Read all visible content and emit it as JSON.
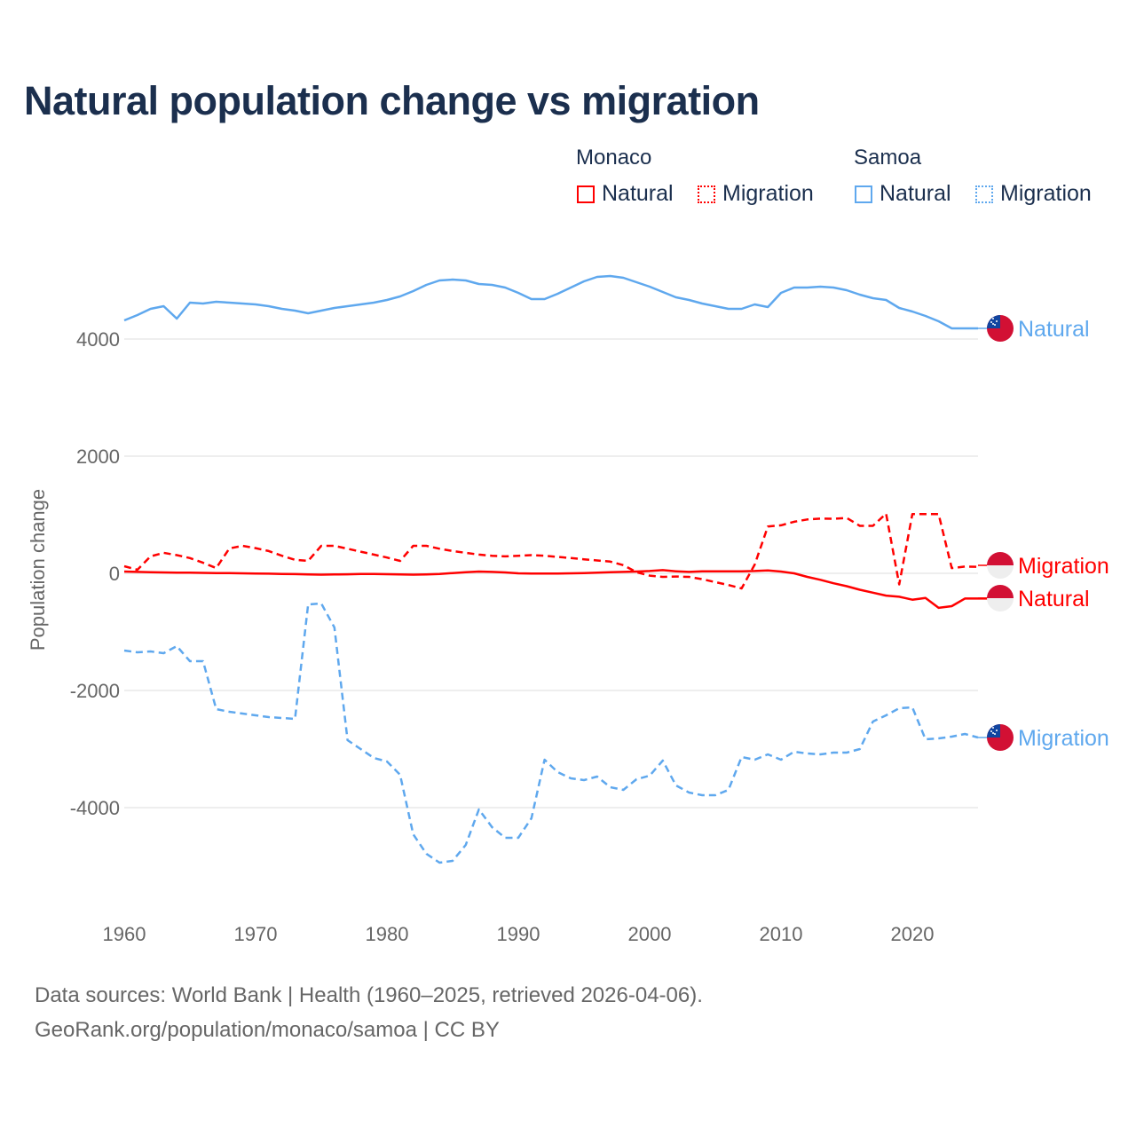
{
  "chart_data": {
    "type": "line",
    "title": "Natural population change vs migration",
    "xlabel": "",
    "ylabel": "Population change",
    "xlim": [
      1960,
      2025
    ],
    "ylim": [
      -5500,
      5500
    ],
    "x_ticks": [
      1960,
      1970,
      1980,
      1990,
      2000,
      2010,
      2020
    ],
    "y_ticks": [
      -4000,
      -2000,
      0,
      2000,
      4000
    ],
    "grid": true,
    "legend_placement": "top-right",
    "legend": {
      "groups": [
        {
          "name": "Monaco",
          "items": [
            "Natural",
            "Migration"
          ]
        },
        {
          "name": "Samoa",
          "items": [
            "Natural",
            "Migration"
          ]
        }
      ]
    },
    "x_start": 1960,
    "series": [
      {
        "name": "Natural",
        "country": "Monaco",
        "color": "#ff0000",
        "dash": false,
        "values": [
          30,
          25,
          20,
          15,
          12,
          10,
          8,
          5,
          3,
          0,
          -3,
          -6,
          -10,
          -14,
          -18,
          -22,
          -20,
          -16,
          -12,
          -12,
          -15,
          -20,
          -22,
          -18,
          -10,
          5,
          20,
          30,
          25,
          15,
          0,
          -5,
          -5,
          -3,
          0,
          5,
          10,
          18,
          25,
          30,
          40,
          55,
          35,
          25,
          35,
          35,
          35,
          35,
          40,
          50,
          30,
          0,
          -60,
          -110,
          -170,
          -220,
          -280,
          -330,
          -380,
          -400,
          -450,
          -420,
          -590,
          -560,
          -430,
          -430,
          -430
        ]
      },
      {
        "name": "Migration",
        "country": "Monaco",
        "color": "#ff0000",
        "dash": true,
        "values": [
          121,
          60,
          290,
          350,
          310,
          260,
          180,
          90,
          424,
          470,
          430,
          380,
          300,
          230,
          212,
          470,
          470,
          420,
          370,
          320,
          270,
          212,
          470,
          470,
          420,
          380,
          350,
          320,
          300,
          290,
          300,
          310,
          300,
          280,
          260,
          240,
          220,
          200,
          140,
          20,
          -40,
          -60,
          -55,
          -60,
          -100,
          -150,
          -200,
          -258,
          150,
          800,
          820,
          880,
          920,
          935,
          930,
          945,
          810,
          810,
          1020,
          -190,
          1010,
          1010,
          1010,
          90,
          115,
          110
        ]
      },
      {
        "name": "Natural",
        "country": "Samoa",
        "color": "#5fa8ee",
        "dash": false,
        "values": [
          4318,
          4409,
          4515,
          4560,
          4348,
          4621,
          4606,
          4636,
          4621,
          4606,
          4591,
          4560,
          4515,
          4485,
          4439,
          4485,
          4530,
          4560,
          4591,
          4621,
          4667,
          4727,
          4818,
          4924,
          5000,
          5015,
          5000,
          4939,
          4924,
          4879,
          4788,
          4682,
          4682,
          4773,
          4879,
          4985,
          5061,
          5076,
          5045,
          4970,
          4894,
          4803,
          4712,
          4667,
          4606,
          4560,
          4515,
          4515,
          4591,
          4545,
          4788,
          4879,
          4879,
          4894,
          4879,
          4833,
          4758,
          4697,
          4667,
          4530,
          4470,
          4394,
          4303,
          4182,
          4182,
          4182
        ]
      },
      {
        "name": "Migration",
        "country": "Samoa",
        "color": "#5fa8ee",
        "dash": true,
        "values": [
          -1318,
          -1348,
          -1333,
          -1364,
          -1242,
          -1500,
          -1500,
          -2318,
          -2364,
          -2394,
          -2424,
          -2455,
          -2470,
          -2485,
          -530,
          -515,
          -924,
          -2848,
          -3000,
          -3151,
          -3212,
          -3439,
          -4454,
          -4788,
          -4939,
          -4909,
          -4636,
          -4030,
          -4333,
          -4515,
          -4515,
          -4182,
          -3182,
          -3394,
          -3500,
          -3530,
          -3470,
          -3652,
          -3697,
          -3515,
          -3455,
          -3197,
          -3621,
          -3742,
          -3788,
          -3788,
          -3697,
          -3136,
          -3182,
          -3091,
          -3182,
          -3045,
          -3076,
          -3091,
          -3061,
          -3061,
          -3000,
          -2530,
          -2424,
          -2303,
          -2288,
          -2833,
          -2818,
          -2788,
          -2742,
          -2803
        ]
      }
    ],
    "end_labels": [
      {
        "series": 2,
        "text": "Natural",
        "flag": "samoa"
      },
      {
        "series": 1,
        "text": "Migration",
        "flag": "monaco"
      },
      {
        "series": 0,
        "text": "Natural",
        "flag": "monaco"
      },
      {
        "series": 3,
        "text": "Migration",
        "flag": "samoa"
      }
    ]
  },
  "legend_labels": {
    "monaco": "Monaco",
    "samoa": "Samoa",
    "monaco_natural": "Natural",
    "monaco_migration": "Migration",
    "samoa_natural": "Natural",
    "samoa_migration": "Migration"
  },
  "colors": {
    "monaco": "#ff0000",
    "samoa": "#5fa8ee",
    "title": "#1b2f4e"
  },
  "footer": {
    "line1": "Data sources: World Bank | Health (1960–2025, retrieved 2026-04-06).",
    "line2": "GeoRank.org/population/monaco/samoa | CC BY"
  }
}
